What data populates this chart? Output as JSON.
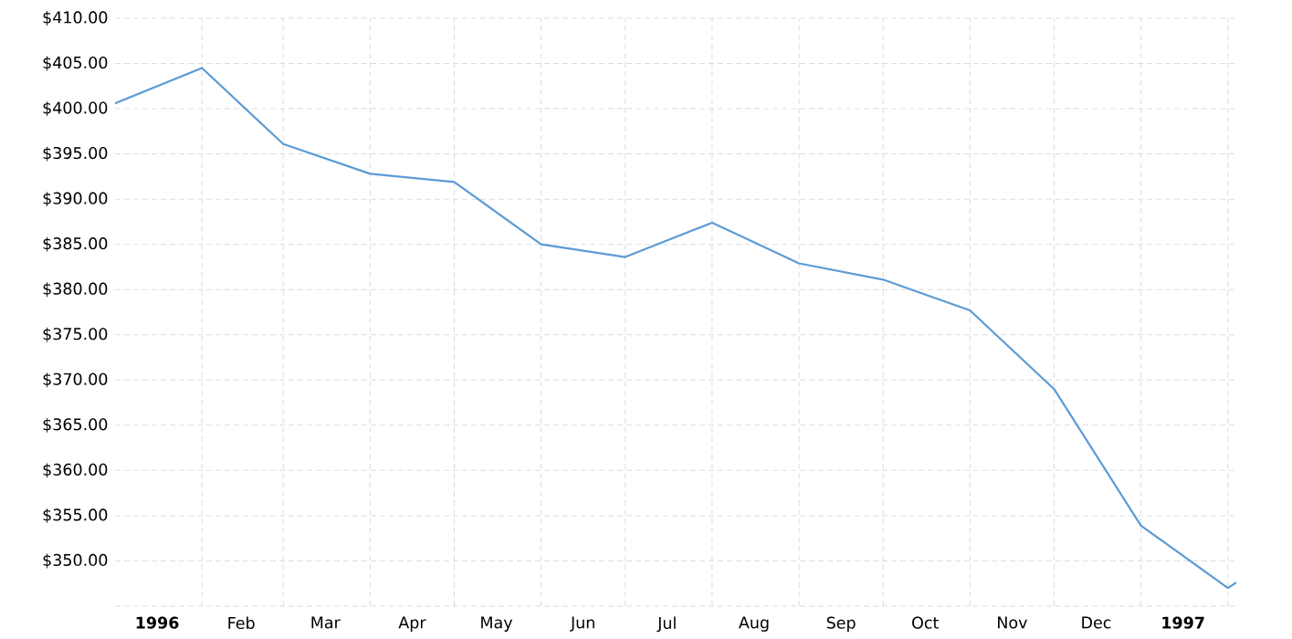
{
  "chart_data": {
    "type": "line",
    "x": [
      "1996-01-01",
      "1996-02-01",
      "1996-03-01",
      "1996-04-01",
      "1996-05-01",
      "1996-06-01",
      "1996-07-01",
      "1996-08-01",
      "1996-09-01",
      "1996-10-01",
      "1996-11-01",
      "1996-12-01",
      "1997-01-01",
      "1997-02-01",
      "1997-02-04"
    ],
    "values": [
      400.6,
      404.5,
      396.1,
      392.8,
      391.9,
      385.0,
      383.6,
      387.4,
      382.9,
      381.1,
      377.7,
      369.0,
      353.9,
      347.0,
      347.6
    ],
    "color": "#5b9bd5",
    "xlim": [
      "1996-01-01",
      "1997-02-04"
    ],
    "xticks": [
      {
        "value": "1996-01-16",
        "label": "1996"
      },
      {
        "value": "1996-02-01",
        "label": null
      },
      {
        "value": "1996-02-15",
        "label": "Feb"
      },
      {
        "value": "1996-03-01",
        "label": null
      },
      {
        "value": "1996-03-16",
        "label": "Mar"
      },
      {
        "value": "1996-04-01",
        "label": null
      },
      {
        "value": "1996-04-16",
        "label": "Apr"
      },
      {
        "value": "1996-05-01",
        "label": null
      },
      {
        "value": "1996-05-16",
        "label": "May"
      },
      {
        "value": "1996-06-01",
        "label": null
      },
      {
        "value": "1996-06-16",
        "label": "Jun"
      },
      {
        "value": "1996-07-01",
        "label": null
      },
      {
        "value": "1996-07-16",
        "label": "Jul"
      },
      {
        "value": "1996-08-01",
        "label": null
      },
      {
        "value": "1996-08-16",
        "label": "Aug"
      },
      {
        "value": "1996-09-01",
        "label": null
      },
      {
        "value": "1996-09-16",
        "label": "Sep"
      },
      {
        "value": "1996-10-01",
        "label": null
      },
      {
        "value": "1996-10-16",
        "label": "Oct"
      },
      {
        "value": "1996-11-01",
        "label": null
      },
      {
        "value": "1996-11-16",
        "label": "Nov"
      },
      {
        "value": "1996-12-01",
        "label": null
      },
      {
        "value": "1996-12-16",
        "label": "Dec"
      },
      {
        "value": "1997-01-01",
        "label": null
      },
      {
        "value": "1997-01-16",
        "label": "1997"
      },
      {
        "value": "1997-02-01",
        "label": null
      }
    ],
    "ylim": [
      345,
      410
    ],
    "yticks": [
      {
        "value": 345,
        "label": null
      },
      {
        "value": 350,
        "label": "$350.00"
      },
      {
        "value": 355,
        "label": "$355.00"
      },
      {
        "value": 360,
        "label": "$360.00"
      },
      {
        "value": 365,
        "label": "$365.00"
      },
      {
        "value": 370,
        "label": "$370.00"
      },
      {
        "value": 375,
        "label": "$375.00"
      },
      {
        "value": 380,
        "label": "$380.00"
      },
      {
        "value": 385,
        "label": "$385.00"
      },
      {
        "value": 390,
        "label": "$390.00"
      },
      {
        "value": 395,
        "label": "$395.00"
      },
      {
        "value": 400,
        "label": "$400.00"
      },
      {
        "value": 405,
        "label": "$405.00"
      },
      {
        "value": 410,
        "label": "$410.00"
      }
    ],
    "grid": true,
    "marker": "none",
    "line_style": "solid"
  }
}
